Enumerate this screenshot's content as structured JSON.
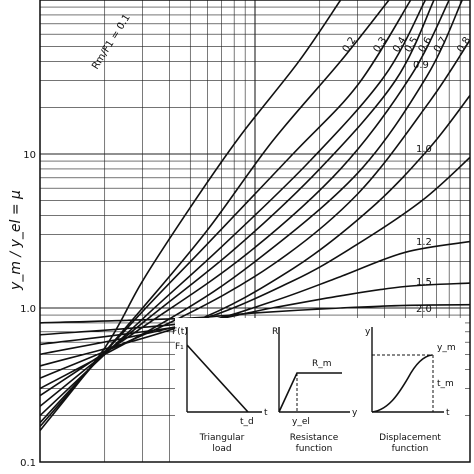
{
  "chart_data": {
    "type": "line",
    "title": "",
    "ylabel": "y_m / y_el = μ",
    "xlabel": "",
    "x_scale": "log",
    "y_scale": "log",
    "xlim": [
      0.1,
      10
    ],
    "ylim": [
      0.1,
      100
    ],
    "y_ticks": [
      {
        "value": 0.1,
        "label": "0.1"
      },
      {
        "value": 1.0,
        "label": "1.0"
      },
      {
        "value": 10,
        "label": "10"
      }
    ],
    "grid": true,
    "series": [
      {
        "name": "Rm/F1 = 0.1",
        "label": "Rm/F1 = 0.1",
        "points": [
          [
            0.1,
            0.16
          ],
          [
            0.2,
            0.55
          ],
          [
            0.3,
            1.5
          ],
          [
            0.5,
            4.5
          ],
          [
            0.85,
            13
          ],
          [
            1.6,
            40
          ],
          [
            2.5,
            100
          ]
        ]
      },
      {
        "name": "0.2",
        "label": "0.2",
        "points": [
          [
            0.1,
            0.17
          ],
          [
            0.3,
            1.0
          ],
          [
            0.6,
            3.2
          ],
          [
            1.2,
            12
          ],
          [
            2.5,
            40
          ],
          [
            4.2,
            100
          ]
        ]
      },
      {
        "name": "0.3",
        "label": "0.3",
        "points": [
          [
            0.1,
            0.18
          ],
          [
            0.3,
            0.95
          ],
          [
            0.6,
            2.6
          ],
          [
            1.5,
            10
          ],
          [
            3.0,
            28
          ],
          [
            5.3,
            100
          ]
        ]
      },
      {
        "name": "0.4",
        "label": "0.4",
        "points": [
          [
            0.1,
            0.2
          ],
          [
            0.3,
            0.85
          ],
          [
            0.7,
            2.5
          ],
          [
            1.8,
            9
          ],
          [
            4.0,
            32
          ],
          [
            6.2,
            100
          ]
        ]
      },
      {
        "name": "0.5",
        "label": "0.5",
        "points": [
          [
            0.1,
            0.23
          ],
          [
            0.3,
            0.8
          ],
          [
            0.8,
            2.4
          ],
          [
            2.0,
            8
          ],
          [
            4.5,
            30
          ],
          [
            6.8,
            100
          ]
        ]
      },
      {
        "name": "0.6",
        "label": "0.6",
        "points": [
          [
            0.1,
            0.27
          ],
          [
            0.3,
            0.75
          ],
          [
            0.9,
            2.2
          ],
          [
            2.5,
            8
          ],
          [
            5.3,
            32
          ],
          [
            8.0,
            100
          ]
        ]
      },
      {
        "name": "0.7",
        "label": "0.7",
        "points": [
          [
            0.1,
            0.3
          ],
          [
            0.4,
            0.85
          ],
          [
            1.0,
            2.0
          ],
          [
            3.0,
            7.5
          ],
          [
            6.3,
            32
          ],
          [
            9.2,
            100
          ]
        ]
      },
      {
        "name": "0.8",
        "label": "0.8",
        "points": [
          [
            0.1,
            0.35
          ],
          [
            0.4,
            0.8
          ],
          [
            1.2,
            1.9
          ],
          [
            3.0,
            5.5
          ],
          [
            6.5,
            22
          ],
          [
            10,
            55
          ]
        ]
      },
      {
        "name": "0.9",
        "label": "0.9",
        "points": [
          [
            0.1,
            0.42
          ],
          [
            0.5,
            0.8
          ],
          [
            1.5,
            1.8
          ],
          [
            3.5,
            4.5
          ],
          [
            6.5,
            11
          ],
          [
            10,
            24
          ]
        ]
      },
      {
        "name": "1.0",
        "label": "1.0",
        "points": [
          [
            0.1,
            0.5
          ],
          [
            0.5,
            0.8
          ],
          [
            1.5,
            1.5
          ],
          [
            3.0,
            2.6
          ],
          [
            6.0,
            5.0
          ],
          [
            10,
            9.5
          ]
        ]
      },
      {
        "name": "1.2",
        "label": "1.2",
        "points": [
          [
            0.1,
            0.58
          ],
          [
            0.5,
            0.78
          ],
          [
            1.2,
            1.1
          ],
          [
            2.5,
            1.6
          ],
          [
            5.0,
            2.3
          ],
          [
            10,
            2.7
          ]
        ]
      },
      {
        "name": "1.5",
        "label": "1.5",
        "points": [
          [
            0.1,
            0.67
          ],
          [
            0.5,
            0.8
          ],
          [
            1.2,
            1.0
          ],
          [
            2.5,
            1.2
          ],
          [
            5.0,
            1.38
          ],
          [
            10,
            1.45
          ]
        ]
      },
      {
        "name": "2.0",
        "label": "2.0",
        "points": [
          [
            0.1,
            0.8
          ],
          [
            0.5,
            0.86
          ],
          [
            1.0,
            0.93
          ],
          [
            2.5,
            1.0
          ],
          [
            5.0,
            1.04
          ],
          [
            10,
            1.05
          ]
        ]
      }
    ]
  },
  "insets": {
    "triangular": {
      "y_label": "F(t)",
      "f1_label": "F₁",
      "td_label": "t_d",
      "t_label": "t",
      "caption_line1": "Triangular",
      "caption_line2": "load"
    },
    "resistance": {
      "y_label": "R",
      "rm_label": "R_m",
      "yel_label": "y_el",
      "y_label_axis": "y",
      "caption_line1": "Resistance",
      "caption_line2": "function"
    },
    "displacement": {
      "y_label": "y",
      "ym_label": "y_m",
      "tm_label": "t_m",
      "t_label": "t",
      "caption_line1": "Displacement",
      "caption_line2": "function"
    }
  }
}
